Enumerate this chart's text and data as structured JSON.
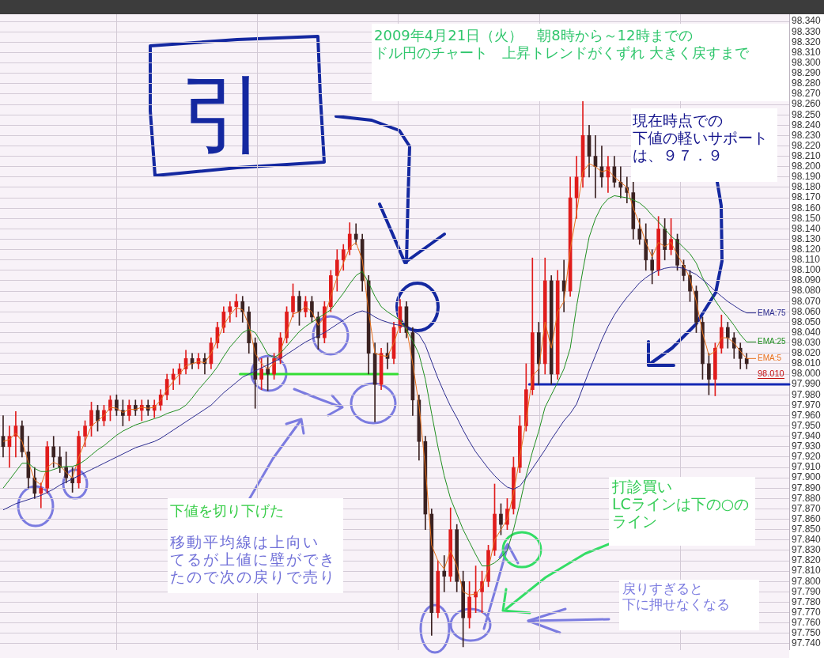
{
  "chart_data": {
    "type": "candlestick",
    "categories": [
      null,
      null,
      null,
      null,
      null,
      null,
      null,
      null,
      null,
      null,
      null,
      null,
      null,
      null,
      null,
      null,
      null,
      null,
      null,
      null,
      null,
      null,
      null,
      null,
      null,
      null,
      null,
      null,
      null,
      null,
      null,
      null,
      null,
      null,
      null,
      null,
      null,
      null,
      null,
      null,
      null,
      null,
      null,
      null,
      null,
      null,
      null,
      null,
      null,
      null,
      null,
      null,
      null,
      null,
      null,
      null,
      null,
      null,
      null,
      null,
      null,
      null,
      null,
      null,
      null,
      null,
      null,
      null,
      null,
      null,
      null,
      null,
      null,
      null,
      null,
      null,
      null,
      null,
      null,
      null,
      null,
      null,
      null,
      null,
      null,
      null,
      null,
      null,
      null,
      null,
      null,
      null,
      null,
      null,
      null,
      null,
      null,
      null,
      null,
      null,
      null,
      null,
      null,
      null,
      null,
      null,
      null,
      null,
      null,
      null,
      null,
      null,
      null,
      null,
      null,
      null,
      null,
      null,
      null
    ],
    "ohlc": [
      [
        97.94,
        97.96,
        97.92,
        97.93
      ],
      [
        97.93,
        97.95,
        97.91,
        97.94
      ],
      [
        97.94,
        97.964,
        97.92,
        97.95
      ],
      [
        97.95,
        97.955,
        97.92,
        97.925
      ],
      [
        97.925,
        97.94,
        97.89,
        97.9
      ],
      [
        97.9,
        97.91,
        97.88,
        97.885
      ],
      [
        97.885,
        97.895,
        97.871,
        97.89
      ],
      [
        97.89,
        97.935,
        97.885,
        97.93
      ],
      [
        97.93,
        97.94,
        97.91,
        97.92
      ],
      [
        97.92,
        97.93,
        97.905,
        97.91
      ],
      [
        97.91,
        97.925,
        97.895,
        97.9
      ],
      [
        97.9,
        97.91,
        97.886,
        97.895
      ],
      [
        97.895,
        97.945,
        97.89,
        97.94
      ],
      [
        97.94,
        97.955,
        97.93,
        97.95
      ],
      [
        97.95,
        97.973,
        97.94,
        97.965
      ],
      [
        97.965,
        97.97,
        97.945,
        97.955
      ],
      [
        97.955,
        97.97,
        97.95,
        97.965
      ],
      [
        97.965,
        97.979,
        97.955,
        97.975
      ],
      [
        97.975,
        97.98,
        97.96,
        97.965
      ],
      [
        97.965,
        97.975,
        97.95,
        97.96
      ],
      [
        97.96,
        97.975,
        97.955,
        97.97
      ],
      [
        97.97,
        97.975,
        97.96,
        97.965
      ],
      [
        97.965,
        97.975,
        97.955,
        97.97
      ],
      [
        97.97,
        97.975,
        97.96,
        97.965
      ],
      [
        97.965,
        97.975,
        97.958,
        97.97
      ],
      [
        97.97,
        97.985,
        97.965,
        97.98
      ],
      [
        97.98,
        98.0,
        97.975,
        97.995
      ],
      [
        97.995,
        98.005,
        97.985,
        98.0
      ],
      [
        98.0,
        98.01,
        97.99,
        98.005
      ],
      [
        98.005,
        98.023,
        98.0,
        98.015
      ],
      [
        98.015,
        98.02,
        98.005,
        98.01
      ],
      [
        98.01,
        98.02,
        98.005,
        98.015
      ],
      [
        98.015,
        98.02,
        98.0,
        98.01
      ],
      [
        98.01,
        98.035,
        98.005,
        98.03
      ],
      [
        98.03,
        98.05,
        98.025,
        98.045
      ],
      [
        98.045,
        98.065,
        98.04,
        98.06
      ],
      [
        98.06,
        98.07,
        98.05,
        98.065
      ],
      [
        98.065,
        98.077,
        98.055,
        98.07
      ],
      [
        98.07,
        98.075,
        98.05,
        98.06
      ],
      [
        98.06,
        98.065,
        98.02,
        98.03
      ],
      [
        98.03,
        98.035,
        97.967,
        97.995
      ],
      [
        97.995,
        98.015,
        97.985,
        98.005
      ],
      [
        98.005,
        98.016,
        97.984,
        98.0
      ],
      [
        98.0,
        98.02,
        97.995,
        98.015
      ],
      [
        98.015,
        98.04,
        98.01,
        98.035
      ],
      [
        98.035,
        98.065,
        98.03,
        98.06
      ],
      [
        98.06,
        98.087,
        98.055,
        98.075
      ],
      [
        98.075,
        98.08,
        98.047,
        98.06
      ],
      [
        98.06,
        98.075,
        98.055,
        98.07
      ],
      [
        98.07,
        98.075,
        98.05,
        98.055
      ],
      [
        98.055,
        98.06,
        98.024,
        98.035
      ],
      [
        98.035,
        98.07,
        98.03,
        98.065
      ],
      [
        98.065,
        98.1,
        98.06,
        98.095
      ],
      [
        98.095,
        98.12,
        98.08,
        98.11
      ],
      [
        98.11,
        98.125,
        98.1,
        98.12
      ],
      [
        98.12,
        98.146,
        98.115,
        98.135
      ],
      [
        98.135,
        98.145,
        98.125,
        98.13
      ],
      [
        98.13,
        98.135,
        98.08,
        98.09
      ],
      [
        98.09,
        98.095,
        98.0,
        98.02
      ],
      [
        98.02,
        98.03,
        97.954,
        97.99
      ],
      [
        97.99,
        98.025,
        97.985,
        98.02
      ],
      [
        98.02,
        98.03,
        98.005,
        98.015
      ],
      [
        98.015,
        98.05,
        98.01,
        98.045
      ],
      [
        98.045,
        98.072,
        98.04,
        98.065
      ],
      [
        98.065,
        98.07,
        98.035,
        98.04
      ],
      [
        98.04,
        98.045,
        97.96,
        97.975
      ],
      [
        97.975,
        97.98,
        97.917,
        97.935
      ],
      [
        97.935,
        97.94,
        97.85,
        97.865
      ],
      [
        97.865,
        97.87,
        97.748,
        97.77
      ],
      [
        97.77,
        97.82,
        97.765,
        97.81
      ],
      [
        97.81,
        97.825,
        97.79,
        97.805
      ],
      [
        97.805,
        97.871,
        97.8,
        97.85
      ],
      [
        97.85,
        97.855,
        97.79,
        97.8
      ],
      [
        97.8,
        97.81,
        97.737,
        97.765
      ],
      [
        97.765,
        97.8,
        97.755,
        97.785
      ],
      [
        97.785,
        97.815,
        97.77,
        97.79
      ],
      [
        97.79,
        97.81,
        97.77,
        97.8
      ],
      [
        97.8,
        97.835,
        97.795,
        97.83
      ],
      [
        97.83,
        97.894,
        97.825,
        97.865
      ],
      [
        97.865,
        97.875,
        97.845,
        97.855
      ],
      [
        97.855,
        97.88,
        97.85,
        97.87
      ],
      [
        97.87,
        97.92,
        97.865,
        97.91
      ],
      [
        97.91,
        97.96,
        97.905,
        97.95
      ],
      [
        97.95,
        98.01,
        97.945,
        97.985
      ],
      [
        97.985,
        98.112,
        97.98,
        98.04
      ],
      [
        98.04,
        98.05,
        97.99,
        98.01
      ],
      [
        98.01,
        98.112,
        98.0,
        98.09
      ],
      [
        98.09,
        98.095,
        97.99,
        98.0
      ],
      [
        98.0,
        98.1,
        97.995,
        98.09
      ],
      [
        98.09,
        98.11,
        98.06,
        98.08
      ],
      [
        98.08,
        98.19,
        98.075,
        98.17
      ],
      [
        98.17,
        98.21,
        98.15,
        98.19
      ],
      [
        98.19,
        98.263,
        98.18,
        98.23
      ],
      [
        98.23,
        98.24,
        98.19,
        98.21
      ],
      [
        98.21,
        98.23,
        98.17,
        98.2
      ],
      [
        98.2,
        98.22,
        98.18,
        98.19
      ],
      [
        98.19,
        98.21,
        98.175,
        98.2
      ],
      [
        98.2,
        98.21,
        98.18,
        98.185
      ],
      [
        98.185,
        98.2,
        98.17,
        98.18
      ],
      [
        98.18,
        98.19,
        98.165,
        98.175
      ],
      [
        98.175,
        98.185,
        98.13,
        98.14
      ],
      [
        98.14,
        98.15,
        98.125,
        98.13
      ],
      [
        98.13,
        98.145,
        98.1,
        98.11
      ],
      [
        98.11,
        98.12,
        98.087,
        98.1
      ],
      [
        98.1,
        98.152,
        98.095,
        98.14
      ],
      [
        98.14,
        98.15,
        98.11,
        98.12
      ],
      [
        98.12,
        98.15,
        98.115,
        98.13
      ],
      [
        98.13,
        98.135,
        98.1,
        98.105
      ],
      [
        98.105,
        98.11,
        98.09,
        98.095
      ],
      [
        98.095,
        98.1,
        98.07,
        98.08
      ],
      [
        98.08,
        98.085,
        98.04,
        98.05
      ],
      [
        98.05,
        98.055,
        97.995,
        98.01
      ],
      [
        98.01,
        98.02,
        97.98,
        97.995
      ],
      [
        97.995,
        98.03,
        97.979,
        98.025
      ],
      [
        98.025,
        98.057,
        98.02,
        98.045
      ],
      [
        98.045,
        98.05,
        98.025,
        98.035
      ],
      [
        98.035,
        98.04,
        98.015,
        98.025
      ],
      [
        98.025,
        98.03,
        98.005,
        98.015
      ],
      [
        98.015,
        98.02,
        98.005,
        98.01
      ]
    ],
    "series": [
      {
        "name": "EMA:5",
        "type": "line",
        "color": "#e8701a",
        "values": [
          97.935,
          97.937,
          97.943,
          97.935,
          97.915,
          97.898,
          97.893,
          97.91,
          97.915,
          97.912,
          97.905,
          97.9,
          97.92,
          97.935,
          97.95,
          97.955,
          97.96,
          97.968,
          97.967,
          97.963,
          97.966,
          97.966,
          97.968,
          97.967,
          97.968,
          97.975,
          97.985,
          97.993,
          98.0,
          98.008,
          98.01,
          98.012,
          98.011,
          98.02,
          98.033,
          98.047,
          98.057,
          98.064,
          98.062,
          98.047,
          98.02,
          98.01,
          98.005,
          98.01,
          98.022,
          98.04,
          98.058,
          98.06,
          98.065,
          98.06,
          98.047,
          98.055,
          98.075,
          98.093,
          98.107,
          98.122,
          98.127,
          98.11,
          98.06,
          98.02,
          98.018,
          98.017,
          98.03,
          98.048,
          98.045,
          98.01,
          97.97,
          97.91,
          97.835,
          97.82,
          97.812,
          97.83,
          97.815,
          97.79,
          97.787,
          97.788,
          97.795,
          97.812,
          97.84,
          97.85,
          97.86,
          97.885,
          97.92,
          97.955,
          97.998,
          98.005,
          98.05,
          98.025,
          98.06,
          98.07,
          98.12,
          98.155,
          98.195,
          98.203,
          98.2,
          98.195,
          98.197,
          98.19,
          98.185,
          98.18,
          98.16,
          98.145,
          98.127,
          98.113,
          98.127,
          98.123,
          98.127,
          98.115,
          98.105,
          98.092,
          98.07,
          98.04,
          98.018,
          98.022,
          98.035,
          98.035,
          98.03,
          98.022,
          98.015
        ]
      },
      {
        "name": "EMA:25",
        "type": "line",
        "color": "#1f8f1f",
        "values": [
          97.89,
          97.898,
          97.906,
          97.914,
          97.914,
          97.909,
          97.906,
          97.906,
          97.908,
          97.91,
          97.911,
          97.911,
          97.913,
          97.917,
          97.922,
          97.927,
          97.931,
          97.936,
          97.941,
          97.945,
          97.948,
          97.951,
          97.953,
          97.955,
          97.957,
          97.959,
          97.962,
          97.964,
          97.966,
          97.97,
          97.977,
          97.985,
          97.992,
          97.999,
          98.007,
          98.017,
          98.026,
          98.033,
          98.04,
          98.043,
          98.04,
          98.03,
          98.019,
          98.016,
          98.02,
          98.027,
          98.034,
          98.041,
          98.046,
          98.05,
          98.054,
          98.058,
          98.062,
          98.07,
          98.078,
          98.087,
          98.095,
          98.099,
          98.088,
          98.075,
          98.065,
          98.06,
          98.056,
          98.052,
          98.043,
          98.032,
          98.019,
          97.995,
          97.962,
          97.93,
          97.902,
          97.88,
          97.865,
          97.85,
          97.838,
          97.826,
          97.815,
          97.815,
          97.818,
          97.823,
          97.83,
          97.85,
          97.875,
          97.902,
          97.925,
          97.945,
          97.968,
          97.98,
          97.992,
          98.005,
          98.025,
          98.065,
          98.1,
          98.132,
          98.15,
          98.162,
          98.169,
          98.172,
          98.171,
          98.17,
          98.168,
          98.165,
          98.16,
          98.153,
          98.147,
          98.14,
          98.133,
          98.128,
          98.122,
          98.116,
          98.107,
          98.093,
          98.082,
          98.071,
          98.062,
          98.055,
          98.047,
          98.038,
          98.031
        ]
      },
      {
        "name": "EMA:75",
        "type": "line",
        "color": "#2a2a8f",
        "values": [
          97.869,
          97.872,
          97.875,
          97.877,
          97.879,
          97.881,
          97.883,
          97.886,
          97.889,
          97.893,
          97.896,
          97.899,
          97.902,
          97.905,
          97.908,
          97.911,
          97.914,
          97.917,
          97.92,
          97.923,
          97.926,
          97.929,
          97.931,
          97.933,
          97.935,
          97.938,
          97.942,
          97.946,
          97.95,
          97.954,
          97.958,
          97.962,
          97.966,
          97.97,
          97.976,
          97.982,
          97.987,
          97.992,
          97.997,
          98.0,
          98.003,
          98.006,
          98.009,
          98.012,
          98.015,
          98.019,
          98.023,
          98.027,
          98.031,
          98.034,
          98.037,
          98.04,
          98.044,
          98.048,
          98.052,
          98.056,
          98.059,
          98.061,
          98.059,
          98.055,
          98.052,
          98.05,
          98.048,
          98.047,
          98.045,
          98.042,
          98.038,
          98.028,
          98.012,
          97.996,
          97.982,
          97.969,
          97.958,
          97.946,
          97.935,
          97.925,
          97.917,
          97.909,
          97.902,
          97.896,
          97.891,
          97.889,
          97.892,
          97.9,
          97.909,
          97.918,
          97.927,
          97.937,
          97.946,
          97.955,
          97.962,
          97.971,
          97.987,
          98.003,
          98.018,
          98.033,
          98.046,
          98.057,
          98.066,
          98.074,
          98.081,
          98.088,
          98.093,
          98.097,
          98.1,
          98.102,
          98.103,
          98.103,
          98.102,
          98.099,
          98.096,
          98.091,
          98.086,
          98.08,
          98.075,
          98.07,
          98.066,
          98.062,
          98.059
        ]
      }
    ],
    "ylim": [
      97.734,
      98.347
    ],
    "yticks": [
      {
        "value": 97.74,
        "label": "97.740"
      },
      {
        "value": 97.75,
        "label": "97.750"
      },
      {
        "value": 97.76,
        "label": "97.760"
      },
      {
        "value": 97.77,
        "label": "97.770"
      },
      {
        "value": 97.78,
        "label": "97.780"
      },
      {
        "value": 97.79,
        "label": "97.790"
      },
      {
        "value": 97.8,
        "label": "97.800"
      },
      {
        "value": 97.81,
        "label": "97.810"
      },
      {
        "value": 97.82,
        "label": "97.820"
      },
      {
        "value": 97.83,
        "label": "97.830"
      },
      {
        "value": 97.84,
        "label": "97.840"
      },
      {
        "value": 97.85,
        "label": "97.850"
      },
      {
        "value": 97.86,
        "label": "97.860"
      },
      {
        "value": 97.87,
        "label": "97.870"
      },
      {
        "value": 97.88,
        "label": "97.880"
      },
      {
        "value": 97.89,
        "label": "97.890"
      },
      {
        "value": 97.9,
        "label": "97.900"
      },
      {
        "value": 97.91,
        "label": "97.910"
      },
      {
        "value": 97.92,
        "label": "97.920"
      },
      {
        "value": 97.93,
        "label": "97.930"
      },
      {
        "value": 97.94,
        "label": "97.940"
      },
      {
        "value": 97.95,
        "label": "97.950"
      },
      {
        "value": 97.96,
        "label": "97.960"
      },
      {
        "value": 97.97,
        "label": "97.970"
      },
      {
        "value": 97.98,
        "label": "97.980"
      },
      {
        "value": 97.99,
        "label": "97.990"
      },
      {
        "value": 98.0,
        "label": "98.000"
      },
      {
        "value": 98.01,
        "label": "98.010"
      },
      {
        "value": 98.02,
        "label": "98.020"
      },
      {
        "value": 98.03,
        "label": "98.030"
      },
      {
        "value": 98.04,
        "label": "98.040"
      },
      {
        "value": 98.05,
        "label": "98.050"
      },
      {
        "value": 98.06,
        "label": "98.060"
      },
      {
        "value": 98.07,
        "label": "98.070"
      },
      {
        "value": 98.08,
        "label": "98.080"
      },
      {
        "value": 98.09,
        "label": "98.090"
      },
      {
        "value": 98.1,
        "label": "98.100"
      },
      {
        "value": 98.11,
        "label": "98.110"
      },
      {
        "value": 98.12,
        "label": "98.120"
      },
      {
        "value": 98.13,
        "label": "98.130"
      },
      {
        "value": 98.14,
        "label": "98.140"
      },
      {
        "value": 98.15,
        "label": "98.150"
      },
      {
        "value": 98.16,
        "label": "98.160"
      },
      {
        "value": 98.17,
        "label": "98.170"
      },
      {
        "value": 98.18,
        "label": "98.180"
      },
      {
        "value": 98.19,
        "label": "98.190"
      },
      {
        "value": 98.2,
        "label": "98.200"
      },
      {
        "value": 98.21,
        "label": "98.210"
      },
      {
        "value": 98.22,
        "label": "98.220"
      },
      {
        "value": 98.23,
        "label": "98.230"
      },
      {
        "value": 98.24,
        "label": "98.240"
      },
      {
        "value": 98.25,
        "label": "98.250"
      },
      {
        "value": 98.26,
        "label": "98.260"
      },
      {
        "value": 98.27,
        "label": "98.270"
      },
      {
        "value": 98.28,
        "label": "98.280"
      },
      {
        "value": 98.29,
        "label": "98.290"
      },
      {
        "value": 98.3,
        "label": "98.300"
      },
      {
        "value": 98.31,
        "label": "98.310"
      },
      {
        "value": 98.32,
        "label": "98.320"
      },
      {
        "value": 98.33,
        "label": "98.330"
      },
      {
        "value": 98.34,
        "label": "98.340"
      }
    ],
    "tick_labels": "y",
    "grid": true,
    "legend": "right",
    "ref_lines": [
      {
        "axis": "y",
        "value": 98.0,
        "color": "#33dd33"
      },
      {
        "axis": "y",
        "value": 97.99,
        "color": "#1428b4"
      }
    ],
    "annotations": [
      "2009年4月21日（火）　朝8時から～12時までの",
      "ドル円のチャート　上昇トレンドがくずれ 大きく戻すまで",
      "引",
      "現在時点での",
      "下値の軽いサポート",
      "は、９７．９",
      "下値を切り下げた",
      "移動平均線は上向い",
      "てるが上値に壁ができ",
      "たので次の戻りで売り",
      "打診買い",
      "LCラインは下の○の",
      "ライン",
      "戻りすぎると",
      "下に押せなくなる",
      "98.010"
    ]
  }
}
